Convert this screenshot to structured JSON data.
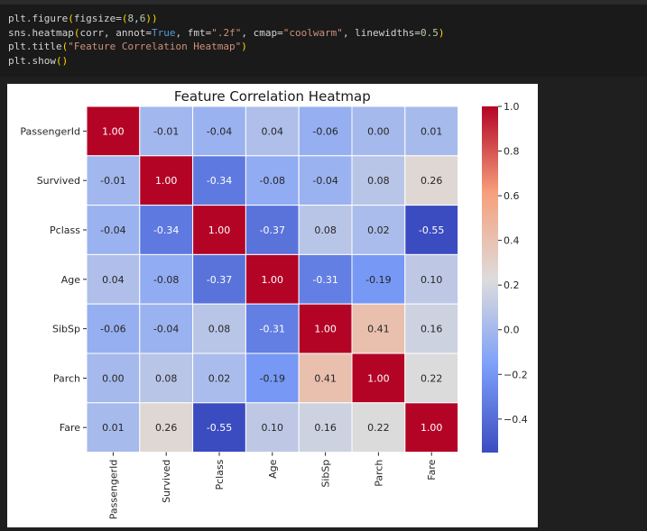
{
  "code": {
    "lines": [
      "plt.figure(figsize=(8,6))",
      "sns.heatmap(corr, annot=True, fmt=\".2f\", cmap=\"coolwarm\", linewidths=0.5)",
      "plt.title(\"Feature Correlation Heatmap\")",
      "plt.show()"
    ]
  },
  "chart_data": {
    "type": "heatmap",
    "title": "Feature Correlation Heatmap",
    "rows": [
      "PassengerId",
      "Survived",
      "Pclass",
      "Age",
      "SibSp",
      "Parch",
      "Fare"
    ],
    "columns": [
      "PassengerId",
      "Survived",
      "Pclass",
      "Age",
      "SibSp",
      "Parch",
      "Fare"
    ],
    "values": [
      [
        1.0,
        -0.01,
        -0.04,
        0.04,
        -0.06,
        -0.0,
        0.01
      ],
      [
        -0.01,
        1.0,
        -0.34,
        -0.08,
        -0.04,
        0.08,
        0.26
      ],
      [
        -0.04,
        -0.34,
        1.0,
        -0.37,
        0.08,
        0.02,
        -0.55
      ],
      [
        0.04,
        -0.08,
        -0.37,
        1.0,
        -0.31,
        -0.19,
        0.1
      ],
      [
        -0.06,
        -0.04,
        0.08,
        -0.31,
        1.0,
        0.41,
        0.16
      ],
      [
        -0.0,
        0.08,
        0.02,
        -0.19,
        0.41,
        1.0,
        0.22
      ],
      [
        0.01,
        0.26,
        -0.55,
        0.1,
        0.16,
        0.22,
        1.0
      ]
    ],
    "annot_format": ".2f",
    "colormap": "coolwarm",
    "colorbar": {
      "min": -0.55,
      "max": 1.0,
      "ticks": [
        1.0,
        0.8,
        0.6,
        0.4,
        0.2,
        0.0,
        -0.2,
        -0.4
      ],
      "tick_labels": [
        "1.0",
        "0.8",
        "0.6",
        "0.4",
        "0.2",
        "0.0",
        "−0.2",
        "−0.4"
      ]
    }
  }
}
